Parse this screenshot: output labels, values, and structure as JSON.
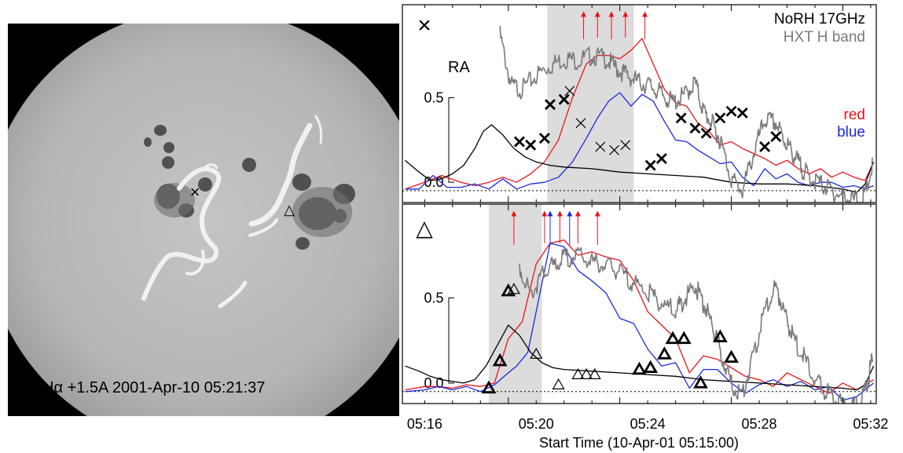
{
  "image_panel": {
    "caption": "Hα +1.5A  2001-Apr-10 05:21:37",
    "markers": [
      {
        "symbol": "×",
        "name": "cross-marker"
      },
      {
        "symbol": "△",
        "name": "triangle-marker"
      }
    ]
  },
  "legend": {
    "norh": "NoRH 17GHz",
    "hxt": "HXT H band",
    "red": "red",
    "blue": "blue"
  },
  "colors": {
    "red": "#e8141c",
    "blue": "#1a2ad8",
    "hxt": "#7a7a7a",
    "black": "#000000",
    "shade": "#dcdcdc"
  },
  "chart_data": {
    "type": "line",
    "xlabel": "Start Time (10-Apr-01 05:15:00)",
    "x_ticks": [
      "05:16",
      "05:20",
      "05:24",
      "05:28",
      "05:32"
    ],
    "x_unit": "minutes after 05:15:00",
    "xlim": [
      0.2,
      17.2
    ],
    "panels": [
      {
        "id": "cross",
        "symbol": "×",
        "ylabel": "RA",
        "y_ticks": [
          "0.5",
          "0.0"
        ],
        "ylim": [
          -0.12,
          1.05
        ],
        "shade": [
          5.4,
          8.5
        ],
        "arrows": [
          {
            "t": 6.7,
            "color": "red"
          },
          {
            "t": 7.2,
            "color": "red"
          },
          {
            "t": 7.7,
            "color": "red"
          },
          {
            "t": 8.2,
            "color": "red"
          },
          {
            "t": 8.9,
            "color": "red"
          }
        ],
        "series": [
          {
            "name": "red",
            "color": "red",
            "t": [
              0.3,
              1.0,
              1.6,
              2.3,
              2.8,
              3.3,
              3.8,
              4.3,
              4.8,
              5.3,
              5.8,
              6.3,
              6.8,
              7.2,
              7.6,
              8.0,
              8.4,
              8.8,
              9.2,
              9.6,
              10.0,
              10.4,
              10.8,
              11.2,
              11.6,
              12.0,
              12.4,
              12.8,
              13.2,
              13.6,
              14.0,
              14.4,
              14.8,
              15.2,
              15.6,
              16.0,
              16.4,
              16.8,
              17.1
            ],
            "v": [
              -0.04,
              0.0,
              0.04,
              0.0,
              -0.02,
              0.0,
              0.03,
              0.0,
              0.05,
              0.12,
              0.25,
              0.5,
              0.7,
              0.75,
              0.75,
              0.73,
              0.78,
              0.85,
              0.7,
              0.55,
              0.47,
              0.45,
              0.35,
              0.3,
              0.22,
              0.24,
              0.2,
              0.17,
              0.14,
              0.1,
              0.13,
              0.08,
              0.05,
              0.08,
              0.03,
              0.06,
              0.03,
              0.01,
              0.12
            ]
          },
          {
            "name": "blue",
            "color": "blue",
            "t": [
              0.3,
              0.8,
              1.3,
              1.8,
              2.3,
              2.8,
              3.3,
              3.8,
              4.3,
              4.8,
              5.3,
              5.8,
              6.3,
              6.8,
              7.2,
              7.6,
              8.0,
              8.4,
              8.8,
              9.2,
              9.6,
              10.0,
              10.4,
              10.8,
              11.2,
              11.6,
              12.0,
              12.4,
              12.8,
              13.2,
              13.6,
              14.0,
              14.4,
              14.8,
              15.2,
              15.6,
              16.0,
              16.4,
              16.8,
              17.1
            ],
            "v": [
              -0.04,
              -0.04,
              0.04,
              -0.03,
              -0.03,
              -0.01,
              -0.04,
              0.02,
              -0.04,
              -0.01,
              0.0,
              0.03,
              0.12,
              0.26,
              0.38,
              0.48,
              0.53,
              0.45,
              0.52,
              0.48,
              0.36,
              0.25,
              0.24,
              0.19,
              0.15,
              0.11,
              0.12,
              0.03,
              -0.02,
              0.08,
              0.02,
              0.05,
              0.0,
              -0.02,
              0.0,
              0.0,
              -0.03,
              -0.02,
              -0.04,
              -0.02
            ]
          },
          {
            "name": "NoRH 17GHz",
            "color": "black",
            "t": [
              0.3,
              0.8,
              1.2,
              1.6,
              2.0,
              2.4,
              2.8,
              3.1,
              3.4,
              3.8,
              4.2,
              4.6,
              5.0,
              5.5,
              6.0,
              7.0,
              8.0,
              9.0,
              10.0,
              11.0,
              12.0,
              13.0,
              14.0,
              15.0,
              16.0,
              16.5,
              16.8,
              17.1
            ],
            "v": [
              0.13,
              0.06,
              0.01,
              0.02,
              0.05,
              0.1,
              0.2,
              0.3,
              0.34,
              0.28,
              0.2,
              0.15,
              0.12,
              0.1,
              0.09,
              0.08,
              0.06,
              0.05,
              0.04,
              0.03,
              0.0,
              -0.01,
              -0.01,
              -0.02,
              -0.04,
              -0.06,
              -0.01,
              0.12
            ]
          },
          {
            "name": "HXT H band",
            "color": "hxt",
            "t": [
              3.7,
              4.1,
              4.5,
              5.0,
              5.5,
              6.0,
              6.5,
              7.0,
              7.5,
              7.9,
              8.3,
              8.7,
              9.1,
              9.5,
              9.9,
              10.3,
              10.7,
              11.0,
              11.3,
              11.6,
              12.0,
              12.4,
              12.8,
              13.2,
              13.6,
              13.9,
              14.2,
              14.5,
              14.8,
              15.2,
              15.6,
              16.0,
              16.4,
              16.8,
              17.1
            ],
            "v": [
              0.9,
              0.6,
              0.58,
              0.66,
              0.72,
              0.76,
              0.75,
              0.78,
              0.76,
              0.7,
              0.66,
              0.62,
              0.6,
              0.55,
              0.5,
              0.54,
              0.62,
              0.45,
              0.38,
              0.28,
              0.05,
              -0.02,
              0.2,
              0.4,
              0.38,
              0.28,
              0.2,
              0.12,
              0.06,
              0.02,
              -0.02,
              -0.06,
              -0.08,
              -0.05,
              0.15
            ]
          }
        ],
        "markers": {
          "bold": [
            [
              4.4,
              0.24
            ],
            [
              4.8,
              0.22
            ],
            [
              5.3,
              0.26
            ],
            [
              5.5,
              0.46
            ],
            [
              6.0,
              0.49
            ],
            [
              9.1,
              0.1
            ],
            [
              9.5,
              0.14
            ],
            [
              10.2,
              0.38
            ],
            [
              10.7,
              0.32
            ],
            [
              11.1,
              0.29
            ],
            [
              11.6,
              0.38
            ],
            [
              12.0,
              0.42
            ],
            [
              12.4,
              0.41
            ],
            [
              13.2,
              0.21
            ],
            [
              13.6,
              0.27
            ]
          ],
          "thin": [
            [
              6.2,
              0.54
            ],
            [
              6.6,
              0.35
            ],
            [
              7.3,
              0.21
            ],
            [
              7.8,
              0.19
            ],
            [
              8.2,
              0.22
            ]
          ]
        }
      },
      {
        "id": "triangle",
        "symbol": "△",
        "ylabel": "",
        "y_ticks": [
          "0.5",
          "0.0"
        ],
        "ylim": [
          -0.12,
          1.05
        ],
        "shade": [
          3.3,
          5.2
        ],
        "arrows": [
          {
            "t": 4.2,
            "color": "red"
          },
          {
            "t": 5.3,
            "color": "red"
          },
          {
            "t": 5.5,
            "color": "blue"
          },
          {
            "t": 5.85,
            "color": "red"
          },
          {
            "t": 6.2,
            "color": "blue"
          },
          {
            "t": 6.5,
            "color": "red"
          },
          {
            "t": 7.2,
            "color": "red"
          }
        ],
        "series": [
          {
            "name": "red",
            "color": "red",
            "t": [
              0.3,
              1.0,
              1.5,
              2.0,
              2.5,
              3.0,
              3.5,
              4.0,
              4.5,
              5.0,
              5.5,
              6.0,
              6.5,
              7.0,
              7.5,
              8.0,
              8.5,
              9.0,
              9.5,
              10.0,
              10.5,
              11.0,
              11.5,
              12.0,
              12.5,
              13.0,
              13.5,
              14.0,
              14.5,
              15.0,
              15.5,
              16.0,
              16.5,
              17.1
            ],
            "v": [
              -0.04,
              -0.02,
              -0.02,
              -0.03,
              -0.01,
              -0.02,
              0.0,
              0.26,
              0.36,
              0.7,
              0.82,
              0.84,
              0.75,
              0.77,
              0.74,
              0.72,
              0.6,
              0.42,
              0.34,
              0.26,
              0.06,
              0.16,
              0.14,
              0.09,
              0.04,
              0.02,
              -0.02,
              0.06,
              0.02,
              -0.02,
              -0.06,
              0.0,
              -0.04,
              0.02
            ]
          },
          {
            "name": "blue",
            "color": "blue",
            "t": [
              0.3,
              1.0,
              1.5,
              2.0,
              2.5,
              3.0,
              3.5,
              4.0,
              4.3,
              4.7,
              5.0,
              5.5,
              6.0,
              6.5,
              7.0,
              7.5,
              8.0,
              8.5,
              9.0,
              9.5,
              10.0,
              10.5,
              11.0,
              11.5,
              12.0,
              12.5,
              13.0,
              13.5,
              14.0,
              14.5,
              15.0,
              15.5,
              16.0,
              16.5,
              17.1
            ],
            "v": [
              -0.05,
              -0.04,
              -0.02,
              -0.04,
              -0.02,
              -0.05,
              -0.01,
              0.06,
              0.1,
              0.18,
              0.42,
              0.82,
              0.8,
              0.66,
              0.6,
              0.53,
              0.38,
              0.35,
              0.2,
              0.1,
              0.12,
              -0.03,
              0.08,
              0.08,
              0.0,
              -0.06,
              -0.01,
              0.02,
              -0.02,
              0.01,
              -0.04,
              -0.02,
              -0.1,
              -0.08,
              0.0
            ]
          },
          {
            "name": "NoRH 17GHz",
            "color": "black",
            "t": [
              0.3,
              0.8,
              1.2,
              1.6,
              2.0,
              2.4,
              2.8,
              3.2,
              3.6,
              4.0,
              4.4,
              4.8,
              5.2,
              5.6,
              6.0,
              7.0,
              8.0,
              9.0,
              10.0,
              11.0,
              12.0,
              13.0,
              14.0,
              15.0,
              16.0,
              16.5,
              16.8,
              17.1
            ],
            "v": [
              0.1,
              0.07,
              0.04,
              0.02,
              0.01,
              0.0,
              0.02,
              0.1,
              0.22,
              0.34,
              0.28,
              0.18,
              0.12,
              0.09,
              0.08,
              0.07,
              0.06,
              0.05,
              0.04,
              0.02,
              0.01,
              0.0,
              -0.01,
              -0.02,
              -0.03,
              -0.04,
              -0.01,
              0.1
            ]
          },
          {
            "name": "HXT H band",
            "color": "hxt",
            "t": [
              4.4,
              4.8,
              5.2,
              5.6,
              6.0,
              6.5,
              7.0,
              7.5,
              8.0,
              8.5,
              9.0,
              9.5,
              10.0,
              10.3,
              10.7,
              11.0,
              11.3,
              11.6,
              12.0,
              12.4,
              12.8,
              13.2,
              13.6,
              13.9,
              14.2,
              14.6,
              15.0,
              15.4,
              15.8,
              16.2,
              16.6,
              16.9,
              17.1
            ],
            "v": [
              0.72,
              0.55,
              0.66,
              0.72,
              0.76,
              0.78,
              0.74,
              0.72,
              0.68,
              0.62,
              0.56,
              0.5,
              0.45,
              0.52,
              0.6,
              0.5,
              0.38,
              0.22,
              0.02,
              -0.04,
              0.2,
              0.45,
              0.6,
              0.45,
              0.3,
              0.18,
              0.05,
              -0.02,
              -0.08,
              -0.12,
              -0.1,
              0.05,
              0.2
            ]
          }
        ],
        "markers": {
          "bold": [
            [
              3.3,
              -0.03
            ],
            [
              3.7,
              0.13
            ],
            [
              4.0,
              0.54
            ],
            [
              8.7,
              0.08
            ],
            [
              9.1,
              0.09
            ],
            [
              9.6,
              0.17
            ],
            [
              9.9,
              0.26
            ],
            [
              10.3,
              0.26
            ],
            [
              10.9,
              0.0
            ],
            [
              11.6,
              0.27
            ],
            [
              12.0,
              0.15
            ]
          ],
          "thin": [
            [
              4.2,
              0.55
            ],
            [
              5.0,
              0.17
            ],
            [
              5.8,
              -0.01
            ],
            [
              6.5,
              0.05
            ],
            [
              6.8,
              0.05
            ],
            [
              7.1,
              0.05
            ]
          ]
        }
      }
    ]
  }
}
